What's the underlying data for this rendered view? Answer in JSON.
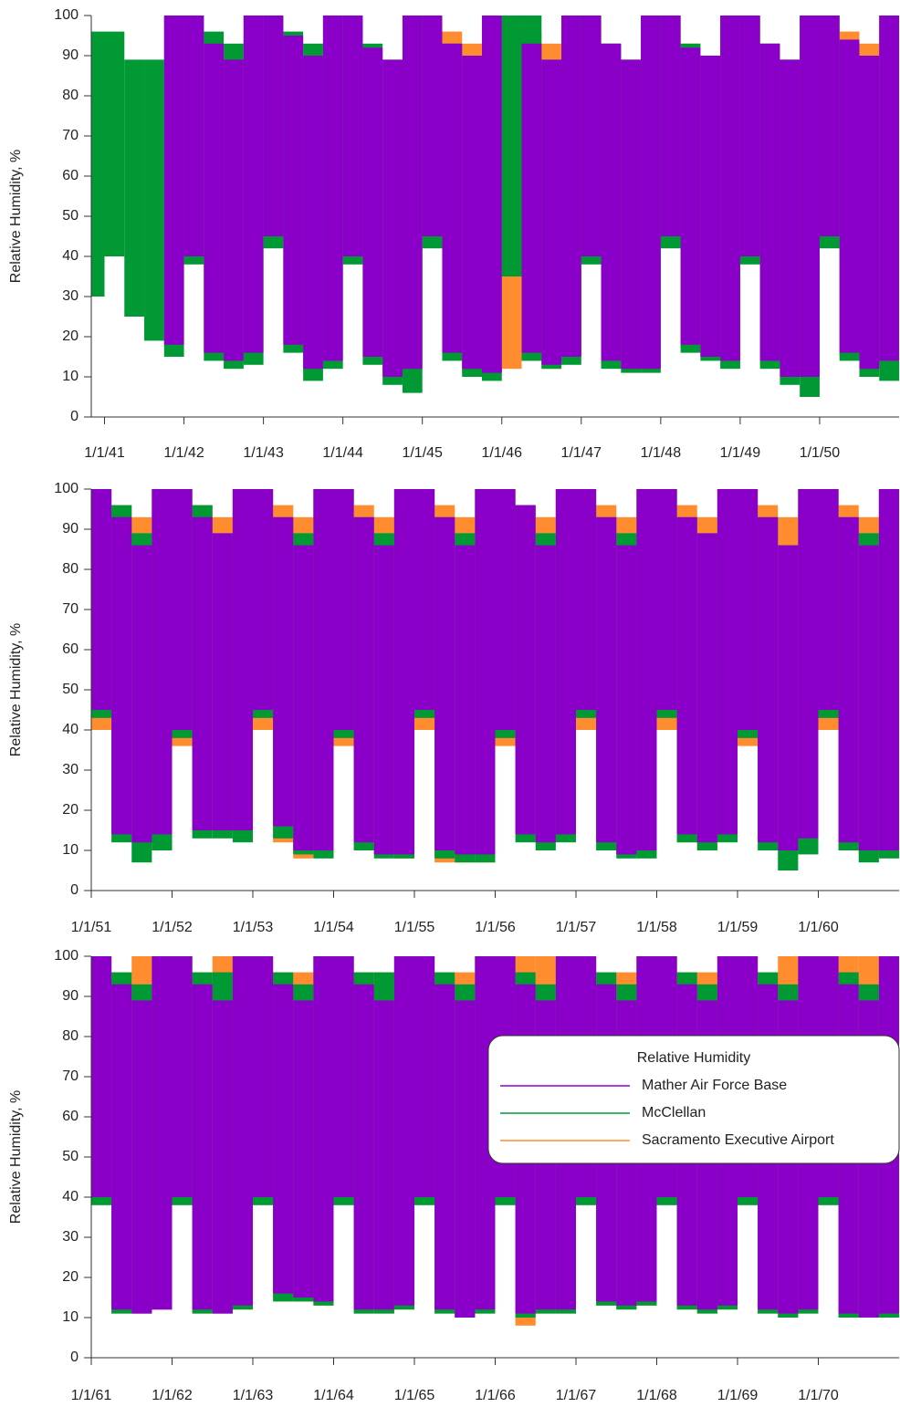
{
  "chart_data": [
    {
      "type": "range",
      "ylabel": "Relative Humidity, %",
      "x": [
        "10/1/40",
        "1/1/41",
        "4/1/41",
        "7/1/41",
        "10/1/41",
        "1/1/42",
        "4/1/42",
        "7/1/42",
        "10/1/42",
        "1/1/43",
        "4/1/43",
        "7/1/43",
        "10/1/43",
        "1/1/44",
        "4/1/44",
        "7/1/44",
        "10/1/44",
        "1/1/45",
        "4/1/45",
        "7/1/45",
        "10/1/45",
        "1/1/46",
        "4/1/46",
        "7/1/46",
        "10/1/46",
        "1/1/47",
        "4/1/47",
        "7/1/47",
        "10/1/47",
        "1/1/48",
        "4/1/48",
        "7/1/48",
        "10/1/48",
        "1/1/49",
        "4/1/49",
        "7/1/49",
        "10/1/49",
        "1/1/50",
        "4/1/50",
        "7/1/50",
        "10/1/50"
      ],
      "xlim": [
        "11/1/40",
        "1/1/51"
      ],
      "xticks": [
        "1/1/41",
        "1/1/42",
        "1/1/43",
        "1/1/44",
        "1/1/45",
        "1/1/46",
        "1/1/47",
        "1/1/48",
        "1/1/49",
        "1/1/50"
      ],
      "ylim": [
        0,
        100
      ],
      "yticks": [
        0,
        10,
        20,
        30,
        40,
        50,
        60,
        70,
        80,
        90,
        100
      ],
      "series": [
        {
          "color": "#ff8c2e",
          "values": [
            null,
            null,
            null,
            null,
            null,
            null,
            null,
            null,
            null,
            null,
            null,
            null,
            null,
            null,
            null,
            null,
            null,
            100,
            96,
            93,
            100,
            100,
            96,
            93,
            100,
            100,
            93,
            89,
            100,
            100,
            93,
            89,
            100,
            100,
            93,
            89,
            100,
            100,
            96,
            93,
            100
          ],
          "low": [
            null,
            null,
            null,
            null,
            null,
            null,
            null,
            null,
            null,
            null,
            null,
            null,
            null,
            null,
            null,
            null,
            null,
            45,
            16,
            11,
            11,
            12,
            14,
            12,
            15,
            40,
            13,
            12,
            12,
            44,
            17,
            15,
            14,
            39,
            13,
            10,
            10,
            44,
            15,
            12,
            14
          ]
        },
        {
          "color": "#009933",
          "values": [
            96,
            96,
            89,
            89,
            100,
            100,
            96,
            93,
            100,
            100,
            96,
            93,
            100,
            100,
            93,
            89,
            100,
            100,
            93,
            89,
            100,
            100,
            100,
            89,
            100,
            100,
            93,
            89,
            100,
            100,
            93,
            89,
            100,
            100,
            93,
            89,
            100,
            100,
            93,
            89,
            100
          ],
          "low": [
            30,
            40,
            25,
            19,
            15,
            38,
            14,
            12,
            13,
            42,
            16,
            9,
            12,
            38,
            13,
            8,
            6,
            42,
            14,
            10,
            9,
            35,
            14,
            12,
            13,
            38,
            12,
            11,
            11,
            42,
            16,
            14,
            12,
            38,
            12,
            8,
            5,
            42,
            14,
            10,
            9
          ]
        },
        {
          "color": "#8b00c9",
          "values": [
            null,
            null,
            null,
            null,
            100,
            100,
            93,
            89,
            100,
            100,
            95,
            90,
            100,
            100,
            92,
            89,
            100,
            100,
            93,
            90,
            100,
            null,
            93,
            89,
            100,
            100,
            93,
            89,
            100,
            100,
            92,
            90,
            100,
            100,
            93,
            89,
            100,
            100,
            94,
            90,
            100
          ],
          "low": [
            null,
            null,
            null,
            null,
            18,
            40,
            16,
            14,
            16,
            45,
            18,
            12,
            14,
            40,
            15,
            10,
            12,
            45,
            16,
            12,
            11,
            null,
            16,
            13,
            15,
            40,
            14,
            12,
            12,
            45,
            18,
            15,
            14,
            40,
            14,
            10,
            10,
            45,
            16,
            12,
            14
          ]
        }
      ]
    },
    {
      "type": "range",
      "ylabel": "Relative Humidity, %",
      "x": [
        "1/1/51",
        "4/1/51",
        "7/1/51",
        "10/1/51",
        "1/1/52",
        "4/1/52",
        "7/1/52",
        "10/1/52",
        "1/1/53",
        "4/1/53",
        "7/1/53",
        "10/1/53",
        "1/1/54",
        "4/1/54",
        "7/1/54",
        "10/1/54",
        "1/1/55",
        "4/1/55",
        "7/1/55",
        "10/1/55",
        "1/1/56",
        "4/1/56",
        "7/1/56",
        "10/1/56",
        "1/1/57",
        "4/1/57",
        "7/1/57",
        "10/1/57",
        "1/1/58",
        "4/1/58",
        "7/1/58",
        "10/1/58",
        "1/1/59",
        "4/1/59",
        "7/1/59",
        "10/1/59",
        "1/1/60",
        "4/1/60",
        "7/1/60",
        "10/1/60"
      ],
      "xlim": [
        "1/1/51",
        "1/1/61"
      ],
      "xticks": [
        "1/1/51",
        "1/1/52",
        "1/1/53",
        "1/1/54",
        "1/1/55",
        "1/1/56",
        "1/1/57",
        "1/1/58",
        "1/1/59",
        "1/1/60"
      ],
      "ylim": [
        0,
        100
      ],
      "yticks": [
        0,
        10,
        20,
        30,
        40,
        50,
        60,
        70,
        80,
        90,
        100
      ],
      "series": [
        {
          "color": "#ff8c2e",
          "values": [
            100,
            96,
            93,
            100,
            100,
            96,
            93,
            100,
            100,
            96,
            93,
            100,
            100,
            96,
            93,
            100,
            100,
            96,
            93,
            100,
            100,
            96,
            93,
            100,
            100,
            96,
            93,
            100,
            100,
            96,
            93,
            100,
            100,
            96,
            93,
            100,
            100,
            96,
            93,
            100
          ],
          "low": [
            40,
            14,
            13,
            15,
            36,
            15,
            15,
            15,
            40,
            12,
            8,
            10,
            36,
            10,
            9,
            8,
            40,
            7,
            7,
            7,
            36,
            14,
            12,
            13,
            40,
            12,
            9,
            10,
            40,
            12,
            10,
            13,
            36,
            12,
            10,
            12,
            40,
            10,
            9,
            10
          ]
        },
        {
          "color": "#009933",
          "values": [
            100,
            96,
            89,
            100,
            100,
            96,
            89,
            100,
            100,
            93,
            89,
            100,
            100,
            93,
            89,
            100,
            100,
            93,
            89,
            100,
            100,
            96,
            89,
            100,
            100,
            93,
            89,
            100,
            100,
            93,
            89,
            100,
            100,
            93,
            86,
            100,
            100,
            93,
            89,
            100
          ],
          "low": [
            43,
            12,
            7,
            10,
            38,
            13,
            13,
            12,
            43,
            13,
            9,
            8,
            38,
            10,
            8,
            8,
            43,
            8,
            7,
            7,
            38,
            12,
            10,
            12,
            43,
            10,
            8,
            8,
            43,
            12,
            10,
            12,
            38,
            10,
            5,
            9,
            43,
            10,
            7,
            8
          ]
        },
        {
          "color": "#8b00c9",
          "values": [
            100,
            93,
            86,
            100,
            100,
            93,
            89,
            100,
            100,
            93,
            86,
            100,
            100,
            93,
            86,
            100,
            100,
            93,
            86,
            100,
            100,
            96,
            86,
            100,
            100,
            93,
            86,
            100,
            100,
            93,
            89,
            100,
            100,
            93,
            86,
            100,
            100,
            93,
            86,
            100
          ],
          "low": [
            45,
            14,
            12,
            14,
            40,
            15,
            15,
            15,
            45,
            16,
            10,
            10,
            40,
            12,
            9,
            9,
            45,
            10,
            9,
            9,
            40,
            14,
            12,
            14,
            45,
            12,
            9,
            10,
            45,
            14,
            12,
            14,
            40,
            12,
            10,
            13,
            45,
            12,
            10,
            10
          ]
        }
      ]
    },
    {
      "type": "range",
      "ylabel": "Relative Humidity, %",
      "legend_title": "Relative Humidity",
      "legend": "right",
      "x": [
        "1/1/61",
        "4/1/61",
        "7/1/61",
        "10/1/61",
        "1/1/62",
        "4/1/62",
        "7/1/62",
        "10/1/62",
        "1/1/63",
        "4/1/63",
        "7/1/63",
        "10/1/63",
        "1/1/64",
        "4/1/64",
        "7/1/64",
        "10/1/64",
        "1/1/65",
        "4/1/65",
        "7/1/65",
        "10/1/65",
        "1/1/66",
        "4/1/66",
        "7/1/66",
        "10/1/66",
        "1/1/67",
        "4/1/67",
        "7/1/67",
        "10/1/67",
        "1/1/68",
        "4/1/68",
        "7/1/68",
        "10/1/68",
        "1/1/69",
        "4/1/69",
        "7/1/69",
        "10/1/69",
        "1/1/70",
        "4/1/70",
        "7/1/70",
        "10/1/70"
      ],
      "xlim": [
        "1/1/61",
        "1/1/71"
      ],
      "xticks": [
        "1/1/61",
        "1/1/62",
        "1/1/63",
        "1/1/64",
        "1/1/65",
        "1/1/66",
        "1/1/67",
        "1/1/68",
        "1/1/69",
        "1/1/70"
      ],
      "ylim": [
        0,
        100
      ],
      "yticks": [
        0,
        10,
        20,
        30,
        40,
        50,
        60,
        70,
        80,
        90,
        100
      ],
      "series": [
        {
          "name": "Sacramento Executive Airport",
          "color": "#ff8c2e",
          "values": [
            100,
            96,
            100,
            100,
            100,
            96,
            100,
            100,
            100,
            96,
            96,
            100,
            100,
            96,
            96,
            100,
            100,
            96,
            96,
            100,
            100,
            100,
            100,
            100,
            100,
            96,
            96,
            100,
            100,
            96,
            96,
            100,
            100,
            96,
            100,
            100,
            100,
            100,
            100,
            100
          ],
          "low": [
            39,
            11,
            11,
            12,
            39,
            11,
            11,
            12,
            39,
            15,
            14,
            13,
            39,
            11,
            11,
            12,
            39,
            11,
            10,
            11,
            39,
            8,
            11,
            11,
            39,
            13,
            12,
            13,
            39,
            12,
            11,
            12,
            39,
            11,
            10,
            11,
            39,
            10,
            10,
            10
          ]
        },
        {
          "name": "McClellan",
          "color": "#009933",
          "values": [
            100,
            96,
            93,
            100,
            100,
            96,
            96,
            100,
            100,
            96,
            93,
            100,
            100,
            96,
            96,
            100,
            100,
            96,
            93,
            100,
            100,
            96,
            93,
            100,
            100,
            96,
            93,
            100,
            100,
            96,
            93,
            100,
            100,
            96,
            93,
            100,
            100,
            96,
            93,
            100
          ],
          "low": [
            38,
            11,
            11,
            12,
            38,
            11,
            11,
            12,
            38,
            14,
            14,
            13,
            38,
            11,
            11,
            12,
            38,
            11,
            10,
            11,
            38,
            10,
            11,
            11,
            38,
            13,
            12,
            13,
            38,
            12,
            11,
            12,
            38,
            11,
            10,
            11,
            38,
            10,
            10,
            10
          ]
        },
        {
          "name": "Mather Air Force Base",
          "color": "#8b00c9",
          "values": [
            100,
            93,
            89,
            100,
            100,
            93,
            89,
            100,
            100,
            93,
            89,
            100,
            100,
            93,
            89,
            100,
            100,
            93,
            89,
            100,
            100,
            93,
            89,
            100,
            100,
            93,
            89,
            100,
            100,
            93,
            89,
            100,
            100,
            93,
            89,
            100,
            100,
            93,
            89,
            100
          ],
          "low": [
            40,
            12,
            11,
            12,
            40,
            12,
            11,
            13,
            40,
            16,
            15,
            14,
            40,
            12,
            12,
            13,
            40,
            12,
            10,
            12,
            40,
            11,
            12,
            12,
            40,
            14,
            13,
            14,
            40,
            13,
            12,
            13,
            40,
            12,
            11,
            12,
            40,
            11,
            10,
            11
          ]
        }
      ]
    }
  ]
}
